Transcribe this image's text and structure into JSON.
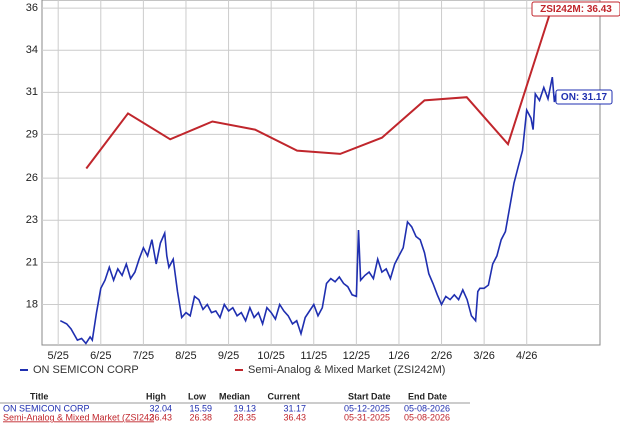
{
  "chart_data": {
    "type": "line",
    "log_scale": false,
    "grid": true,
    "annotations": [
      "ZSI242M: 36.43",
      "ON: 31.17"
    ],
    "xlim": [
      -0.38,
      12.72
    ],
    "ylim": [
      15.5,
      36.8
    ],
    "xticks": [
      {
        "value": 0,
        "label": "5/25"
      },
      {
        "value": 1,
        "label": "6/25"
      },
      {
        "value": 2,
        "label": "7/25"
      },
      {
        "value": 3,
        "label": "8/25"
      },
      {
        "value": 4,
        "label": "9/25"
      },
      {
        "value": 5,
        "label": "10/25"
      },
      {
        "value": 6,
        "label": "11/25"
      },
      {
        "value": 7,
        "label": "12/25"
      },
      {
        "value": 8,
        "label": "1/26"
      },
      {
        "value": 9,
        "label": "2/26"
      },
      {
        "value": 10,
        "label": "3/26"
      },
      {
        "value": 11,
        "label": "4/26"
      }
    ],
    "yticks": [
      18,
      {
        "value": 20.6,
        "label": "21"
      },
      {
        "value": 23.2,
        "label": "23"
      },
      {
        "value": 25.8,
        "label": "26"
      },
      {
        "value": 28.5,
        "label": "29"
      },
      {
        "value": 31.1,
        "label": "31"
      },
      {
        "value": 33.7,
        "label": "34"
      },
      {
        "value": 36.3,
        "label": "36"
      }
    ],
    "series": [
      {
        "name": "ON SEMICON CORP",
        "color": "#1f2fb0",
        "x": [
          0.05,
          0.2,
          0.3,
          0.45,
          0.55,
          0.65,
          0.75,
          0.8,
          0.9,
          1.0,
          1.1,
          1.2,
          1.3,
          1.4,
          1.5,
          1.6,
          1.7,
          1.8,
          1.9,
          2.0,
          2.1,
          2.2,
          2.3,
          2.4,
          2.5,
          2.55,
          2.6,
          2.7,
          2.8,
          2.9,
          3.0,
          3.1,
          3.2,
          3.3,
          3.4,
          3.5,
          3.6,
          3.7,
          3.8,
          3.9,
          4.0,
          4.1,
          4.2,
          4.3,
          4.4,
          4.5,
          4.6,
          4.7,
          4.8,
          4.9,
          5.0,
          5.1,
          5.2,
          5.3,
          5.4,
          5.5,
          5.6,
          5.7,
          5.8,
          5.9,
          6.0,
          6.1,
          6.2,
          6.3,
          6.4,
          6.5,
          6.6,
          6.7,
          6.8,
          6.9,
          7.0,
          7.05,
          7.1,
          7.2,
          7.3,
          7.4,
          7.5,
          7.6,
          7.7,
          7.8,
          7.9,
          8.0,
          8.1,
          8.2,
          8.3,
          8.4,
          8.5,
          8.6,
          8.7,
          8.8,
          8.9,
          9.0,
          9.1,
          9.2,
          9.3,
          9.4,
          9.5,
          9.6,
          9.7,
          9.8,
          9.85,
          9.9,
          10.0,
          10.1,
          10.2,
          10.3,
          10.4,
          10.5,
          10.6,
          10.7,
          10.8,
          10.9,
          11.0,
          11.1,
          11.15,
          11.2,
          11.3,
          11.4,
          11.5,
          11.6,
          11.65,
          11.7
        ],
        "values": [
          17.0,
          16.8,
          16.5,
          15.8,
          15.9,
          15.6,
          16.0,
          15.8,
          17.5,
          19.0,
          19.5,
          20.3,
          19.5,
          20.2,
          19.8,
          20.5,
          19.6,
          20.0,
          20.8,
          21.5,
          21.0,
          22.0,
          20.5,
          21.8,
          22.4,
          21.0,
          20.3,
          20.8,
          18.8,
          17.2,
          17.5,
          17.3,
          18.5,
          18.3,
          17.7,
          18.0,
          17.5,
          17.6,
          17.2,
          18.0,
          17.6,
          17.8,
          17.3,
          17.5,
          17.0,
          17.8,
          17.2,
          17.5,
          16.8,
          17.8,
          17.5,
          17.1,
          18.0,
          17.6,
          17.3,
          16.8,
          17.0,
          16.2,
          17.2,
          17.6,
          18.0,
          17.3,
          17.8,
          19.3,
          19.6,
          19.4,
          19.7,
          19.3,
          19.1,
          18.6,
          18.5,
          22.6,
          19.5,
          19.8,
          20.0,
          19.6,
          20.8,
          20.0,
          20.2,
          19.6,
          20.5,
          21.0,
          21.5,
          23.1,
          22.8,
          22.2,
          22.0,
          21.2,
          19.9,
          19.3,
          18.6,
          18.0,
          18.5,
          18.3,
          18.6,
          18.3,
          18.9,
          18.3,
          17.3,
          17.0,
          18.8,
          19.0,
          19.0,
          19.2,
          20.5,
          21.0,
          22.0,
          22.5,
          24.0,
          25.5,
          26.5,
          27.5,
          30.0,
          29.5,
          28.8,
          31.0,
          30.6,
          31.4,
          30.7,
          32.04,
          30.5,
          31.17
        ]
      },
      {
        "name": "Semi-Analog & Mixed Market (ZSI242M)",
        "color": "#c0262c",
        "x": [
          0.66,
          1.64,
          2.63,
          3.62,
          4.62,
          5.61,
          6.62,
          7.6,
          8.6,
          9.59,
          10.56,
          11.6
        ],
        "values": [
          26.4,
          29.8,
          28.2,
          29.3,
          28.8,
          27.5,
          27.3,
          28.3,
          30.6,
          30.8,
          27.9,
          36.43
        ]
      }
    ],
    "table": {
      "header": [
        "Title",
        "High",
        "Low",
        "Median",
        "Current",
        "Start Date",
        "End Date"
      ],
      "rows": [
        [
          "ON SEMICON CORP",
          "32.04",
          "15.59",
          "19.13",
          "31.17",
          "05-12-2025",
          "05-08-2026"
        ],
        [
          "Semi-Analog & Mixed Market (ZSI242",
          "36.43",
          "26.38",
          "28.35",
          "36.43",
          "05-31-2025",
          "05-08-2026"
        ]
      ]
    }
  }
}
